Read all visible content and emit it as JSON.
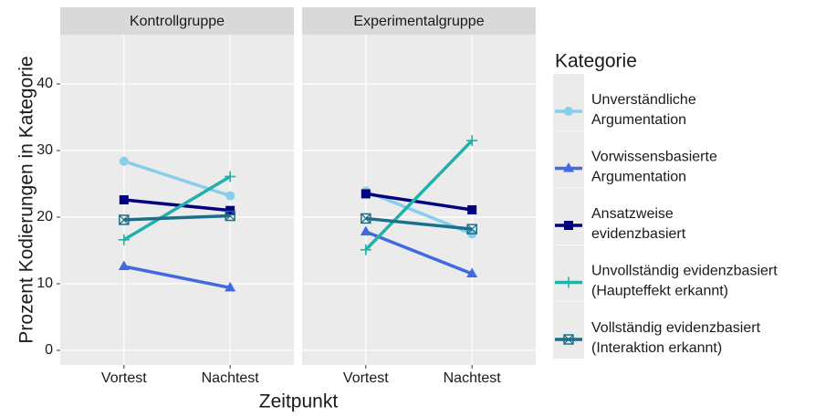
{
  "chart_data": [
    {
      "type": "line",
      "title": "Kontrollgruppe",
      "categories": [
        "Vortest",
        "Nachtest"
      ],
      "series": [
        {
          "values": [
            28.4,
            23.2
          ]
        },
        {
          "values": [
            12.6,
            9.4
          ]
        },
        {
          "values": [
            22.6,
            21.0
          ]
        },
        {
          "values": [
            16.6,
            26.1
          ]
        },
        {
          "values": [
            19.6,
            20.2
          ]
        }
      ],
      "ylim": [
        -2.2,
        47.4
      ],
      "yticks": [
        0,
        10,
        20,
        30,
        40
      ],
      "grid": true
    },
    {
      "type": "line",
      "title": "Experimentalgruppe",
      "categories": [
        "Vortest",
        "Nachtest"
      ],
      "series": [
        {
          "values": [
            23.9,
            17.5
          ]
        },
        {
          "values": [
            17.8,
            11.5
          ]
        },
        {
          "values": [
            23.5,
            21.1
          ]
        },
        {
          "values": [
            15.1,
            31.5
          ]
        },
        {
          "values": [
            19.8,
            18.2
          ]
        }
      ],
      "ylim": [
        -2.2,
        47.4
      ],
      "yticks": [
        0,
        10,
        20,
        30,
        40
      ],
      "grid": true
    }
  ],
  "x_label": "Zeitpunkt",
  "y_label": "Prozent Kodierungen in Kategorie",
  "legend": {
    "title": "Kategorie",
    "entries": [
      {
        "name": [
          "Unverständliche",
          "Argumentation"
        ],
        "color": "#87CEEB",
        "shape": "circle"
      },
      {
        "name": [
          "Vorwissensbasierte",
          "Argumentation"
        ],
        "color": "#4169E1",
        "shape": "triangle"
      },
      {
        "name": [
          "Ansatzweise",
          "evidenzbasiert"
        ],
        "color": "#000080",
        "shape": "square"
      },
      {
        "name": [
          "Unvollständig evidenzbasiert",
          "(Haupteffekt erkannt)"
        ],
        "color": "#20B2AA",
        "shape": "plus"
      },
      {
        "name": [
          "Vollständig evidenzbasiert",
          "(Interaktion erkannt)"
        ],
        "color": "#1B6F8A",
        "shape": "boxcross"
      }
    ]
  }
}
